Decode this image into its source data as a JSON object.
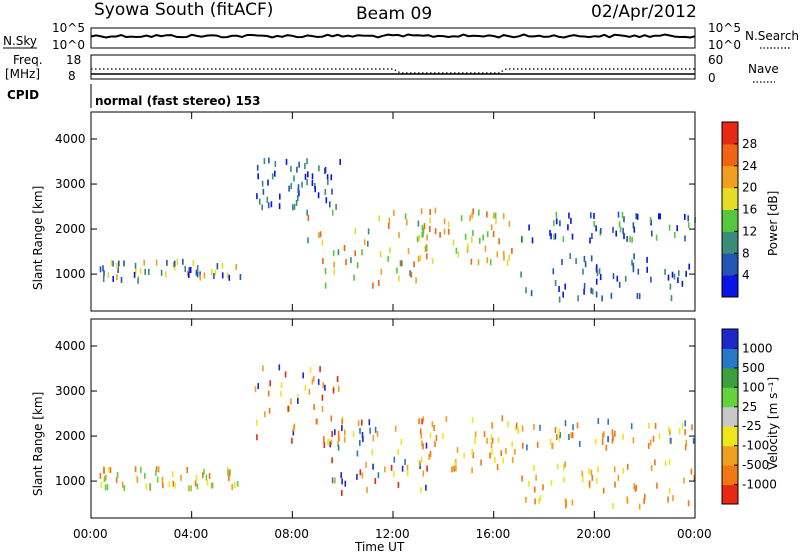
{
  "header": {
    "title": "Syowa South (fitACF)",
    "beam": "Beam 09",
    "date": "02/Apr/2012"
  },
  "ancillary": {
    "nsky_label": "N.Sky",
    "nsearch_label": "N.Search",
    "noise_ticks_left": [
      "10^5",
      "10^0"
    ],
    "noise_ticks_right": [
      "10^5",
      "10^0"
    ],
    "freq_label": "Freq.",
    "freq_unit": "[MHz]",
    "freq_ticks": [
      "18",
      "8"
    ],
    "nave_label": "Nave",
    "nave_ticks": [
      "60",
      "0"
    ],
    "cpid_label": "CPID",
    "cpid_text": "normal (fast stereo) 153"
  },
  "chart_data": [
    {
      "type": "scatter",
      "title": "",
      "ylabel": "Slant Range [km]",
      "xlabel": "",
      "ylim": [
        180,
        4600
      ],
      "xlim_hours": [
        0,
        24
      ],
      "yticks": [
        "1000",
        "2000",
        "3000",
        "4000"
      ],
      "colorbar": {
        "label": "Power [dB]",
        "ticks": [
          "4",
          "8",
          "12",
          "16",
          "20",
          "24",
          "28"
        ],
        "colors": [
          "#0a14e6",
          "#2255b4",
          "#3a8c78",
          "#55c83c",
          "#e6dc28",
          "#f0a01e",
          "#f06414",
          "#e62814"
        ]
      },
      "clusters_description_units": "hour, km",
      "clusters": [
        {
          "x": [
            0.3,
            6.0
          ],
          "y": [
            900,
            1350
          ],
          "colors": [
            0,
            1,
            2,
            4,
            5
          ]
        },
        {
          "x": [
            6.5,
            10.0
          ],
          "y": [
            2500,
            3600
          ],
          "colors": [
            0,
            1,
            2
          ]
        },
        {
          "x": [
            8.5,
            13.5
          ],
          "y": [
            800,
            2500
          ],
          "colors": [
            2,
            3,
            4,
            5,
            6
          ]
        },
        {
          "x": [
            13.0,
            17.0
          ],
          "y": [
            1300,
            2500
          ],
          "colors": [
            3,
            4,
            5,
            6
          ]
        },
        {
          "x": [
            17.0,
            24.0
          ],
          "y": [
            1800,
            2400
          ],
          "colors": [
            0,
            1,
            3
          ]
        },
        {
          "x": [
            17.0,
            24.0
          ],
          "y": [
            500,
            1500
          ],
          "colors": [
            0,
            1,
            2
          ]
        }
      ]
    },
    {
      "type": "scatter",
      "title": "",
      "ylabel": "Slant Range [km]",
      "xlabel": "Time UT",
      "ylim": [
        180,
        4600
      ],
      "xlim_hours": [
        0,
        24
      ],
      "yticks": [
        "1000",
        "2000",
        "3000",
        "4000"
      ],
      "xticks": [
        "00:00",
        "04:00",
        "08:00",
        "12:00",
        "16:00",
        "20:00",
        "00:00"
      ],
      "colorbar": {
        "label": "Velocity [m s⁻¹]",
        "ticks": [
          "1000",
          "500",
          "100",
          "25",
          "-25",
          "-100",
          "-500",
          "-1000"
        ],
        "colors": [
          "#1e28c8",
          "#2878c8",
          "#3ca03c",
          "#64d23c",
          "#c8c8c8",
          "#f0e61e",
          "#f0a01e",
          "#f07814",
          "#e62814"
        ]
      },
      "clusters": [
        {
          "x": [
            0.3,
            6.0
          ],
          "y": [
            900,
            1350
          ],
          "colors": [
            3,
            5,
            6,
            7
          ]
        },
        {
          "x": [
            6.5,
            10.0
          ],
          "y": [
            1800,
            3600
          ],
          "colors": [
            5,
            6,
            7,
            8,
            0
          ]
        },
        {
          "x": [
            9.5,
            13.5
          ],
          "y": [
            800,
            2400
          ],
          "colors": [
            0,
            1,
            5,
            6,
            8
          ]
        },
        {
          "x": [
            13.0,
            17.0
          ],
          "y": [
            1300,
            2500
          ],
          "colors": [
            5,
            6,
            7
          ]
        },
        {
          "x": [
            17.0,
            24.0
          ],
          "y": [
            1800,
            2400
          ],
          "colors": [
            5,
            6,
            7,
            1
          ]
        },
        {
          "x": [
            17.0,
            24.0
          ],
          "y": [
            500,
            1500
          ],
          "colors": [
            5,
            6,
            7
          ]
        }
      ]
    }
  ]
}
